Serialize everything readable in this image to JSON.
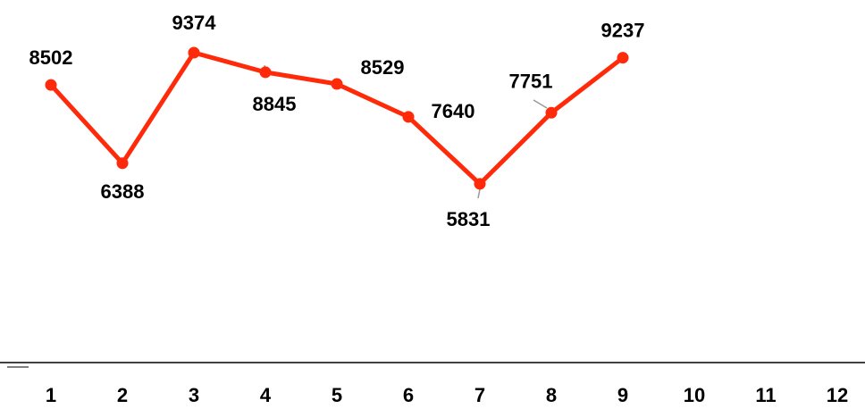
{
  "chart_data": {
    "type": "line",
    "categories": [
      "1",
      "2",
      "3",
      "4",
      "5",
      "6",
      "7",
      "8",
      "9",
      "10",
      "11",
      "12"
    ],
    "series": [
      {
        "values": [
          8502,
          6388,
          9374,
          8845,
          8529,
          7640,
          5831,
          7751,
          9237,
          null,
          null,
          null
        ],
        "color": "#ff2a0a"
      }
    ],
    "data_labels": [
      "8502",
      "6388",
      "9374",
      "8845",
      "8529",
      "7640",
      "5831",
      "7751",
      "9237"
    ],
    "title": "",
    "xlabel": "",
    "ylabel": "",
    "grid": false,
    "legend": "none"
  }
}
